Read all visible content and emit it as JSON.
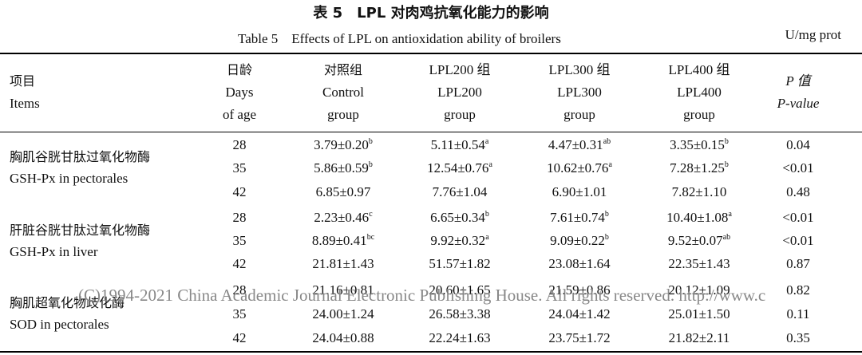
{
  "title_cn": "表 5　LPL 对肉鸡抗氧化能力的影响",
  "title_en": "Table 5　Effects of LPL on antioxidation ability of broilers",
  "unit": "U/mg prot",
  "headers": {
    "items": [
      "项目",
      "Items"
    ],
    "days": [
      "日龄",
      "Days",
      "of age"
    ],
    "control": [
      "对照组",
      "Control",
      "group"
    ],
    "lpl200": [
      "LPL200 组",
      "LPL200",
      "group"
    ],
    "lpl300": [
      "LPL300 组",
      "LPL300",
      "group"
    ],
    "lpl400": [
      "LPL400 组",
      "LPL400",
      "group"
    ],
    "p": [
      "P 值",
      "P-value"
    ]
  },
  "groups": [
    {
      "label_cn": "胸肌谷胱甘肽过氧化物酶",
      "label_en": "GSH-Px in pectorales",
      "rows": [
        {
          "day": "28",
          "control": "3.79±0.20",
          "control_sup": "b",
          "lpl200": "5.11±0.54",
          "lpl200_sup": "a",
          "lpl300": "4.47±0.31",
          "lpl300_sup": "ab",
          "lpl400": "3.35±0.15",
          "lpl400_sup": "b",
          "p": "0.04"
        },
        {
          "day": "35",
          "control": "5.86±0.59",
          "control_sup": "b",
          "lpl200": "12.54±0.76",
          "lpl200_sup": "a",
          "lpl300": "10.62±0.76",
          "lpl300_sup": "a",
          "lpl400": "7.28±1.25",
          "lpl400_sup": "b",
          "p": "<0.01"
        },
        {
          "day": "42",
          "control": "6.85±0.97",
          "control_sup": "",
          "lpl200": "7.76±1.04",
          "lpl200_sup": "",
          "lpl300": "6.90±1.01",
          "lpl300_sup": "",
          "lpl400": "7.82±1.10",
          "lpl400_sup": "",
          "p": "0.48"
        }
      ]
    },
    {
      "label_cn": "肝脏谷胱甘肽过氧化物酶",
      "label_en": "GSH-Px in liver",
      "rows": [
        {
          "day": "28",
          "control": "2.23±0.46",
          "control_sup": "c",
          "lpl200": "6.65±0.34",
          "lpl200_sup": "b",
          "lpl300": "7.61±0.74",
          "lpl300_sup": "b",
          "lpl400": "10.40±1.08",
          "lpl400_sup": "a",
          "p": "<0.01"
        },
        {
          "day": "35",
          "control": "8.89±0.41",
          "control_sup": "bc",
          "lpl200": "9.92±0.32",
          "lpl200_sup": "a",
          "lpl300": "9.09±0.22",
          "lpl300_sup": "b",
          "lpl400": "9.52±0.07",
          "lpl400_sup": "ab",
          "p": "<0.01"
        },
        {
          "day": "42",
          "control": "21.81±1.43",
          "control_sup": "",
          "lpl200": "51.57±1.82",
          "lpl200_sup": "",
          "lpl300": "23.08±1.64",
          "lpl300_sup": "",
          "lpl400": "22.35±1.43",
          "lpl400_sup": "",
          "p": "0.87"
        }
      ]
    },
    {
      "label_cn": "胸肌超氧化物歧化酶",
      "label_en": "SOD in pectorales",
      "rows": [
        {
          "day": "28",
          "control": "21.16±0.81",
          "control_sup": "",
          "lpl200": "20.60±1.65",
          "lpl200_sup": "",
          "lpl300": "21.59±0.86",
          "lpl300_sup": "",
          "lpl400": "20.12±1.09",
          "lpl400_sup": "",
          "p": "0.82"
        },
        {
          "day": "35",
          "control": "24.00±1.24",
          "control_sup": "",
          "lpl200": "26.58±3.38",
          "lpl200_sup": "",
          "lpl300": "24.04±1.42",
          "lpl300_sup": "",
          "lpl400": "25.01±1.50",
          "lpl400_sup": "",
          "p": "0.11"
        },
        {
          "day": "42",
          "control": "24.04±0.88",
          "control_sup": "",
          "lpl200": "22.24±1.63",
          "lpl200_sup": "",
          "lpl300": "23.75±1.72",
          "lpl300_sup": "",
          "lpl400": "21.82±2.11",
          "lpl400_sup": "",
          "p": "0.35"
        }
      ]
    }
  ],
  "watermark": "(C)1994-2021 China Academic Journal Electronic Publishing House. All rights reserved.    http://www.c"
}
